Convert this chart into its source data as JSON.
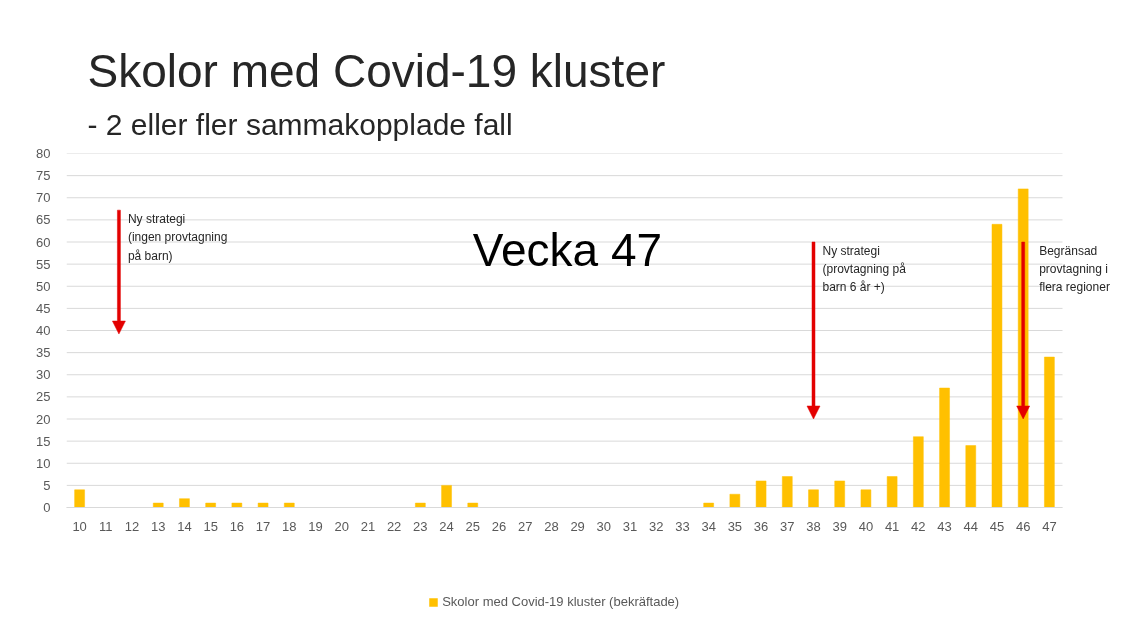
{
  "chart_data": {
    "type": "bar",
    "title": "Skolor med Covid-19 kluster",
    "subtitle": "- 2 eller fler sammakopplade fall",
    "x": [
      10,
      11,
      12,
      13,
      14,
      15,
      16,
      17,
      18,
      19,
      20,
      21,
      22,
      23,
      24,
      25,
      26,
      27,
      28,
      29,
      30,
      31,
      32,
      33,
      34,
      35,
      36,
      37,
      38,
      39,
      40,
      41,
      42,
      43,
      44,
      45,
      46,
      47
    ],
    "xlim": [
      9.5,
      47.5
    ],
    "xticks": [
      10,
      11,
      12,
      13,
      14,
      15,
      16,
      17,
      18,
      19,
      20,
      21,
      22,
      23,
      24,
      25,
      26,
      27,
      28,
      29,
      30,
      31,
      32,
      33,
      34,
      35,
      36,
      37,
      38,
      39,
      40,
      41,
      42,
      43,
      44,
      45,
      46,
      47
    ],
    "ylim": [
      0,
      80
    ],
    "yticks": [
      0,
      5,
      10,
      15,
      20,
      25,
      30,
      35,
      40,
      45,
      50,
      55,
      60,
      65,
      70,
      75,
      80
    ],
    "series": [
      {
        "name": "Skolor med Covid-19 kluster (bekräftade)",
        "color": "#ffc000",
        "values": [
          4,
          0,
          0,
          1,
          2,
          1,
          1,
          1,
          1,
          0,
          0,
          0,
          0,
          1,
          5,
          1,
          0,
          0,
          0,
          0,
          0,
          0,
          0,
          0,
          1,
          3,
          6,
          7,
          4,
          6,
          4,
          7,
          16,
          27,
          14,
          64,
          72,
          34
        ]
      }
    ],
    "annotations": [
      "Vecka 47"
    ],
    "ref_lines": [
      {
        "axis": "x",
        "value": 11.5,
        "label": "Ny strategi\n(ingen provtagning\npå barn)",
        "color": "#e30000"
      },
      {
        "axis": "x",
        "value": 38,
        "label": "Ny strategi\n(provtagning på\nbarn 6 år +)",
        "color": "#e30000"
      },
      {
        "axis": "x",
        "value": 46,
        "label": "Begränsad\nprovtagning i\nflera regioner",
        "color": "#e30000"
      }
    ],
    "grid": "y",
    "legend": "bottom"
  }
}
